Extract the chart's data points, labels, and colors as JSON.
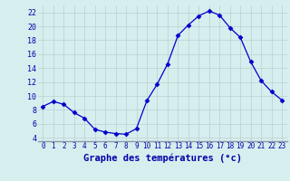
{
  "hours": [
    0,
    1,
    2,
    3,
    4,
    5,
    6,
    7,
    8,
    9,
    10,
    11,
    12,
    13,
    14,
    15,
    16,
    17,
    18,
    19,
    20,
    21,
    22,
    23
  ],
  "temps": [
    8.5,
    9.2,
    8.8,
    7.6,
    6.8,
    5.2,
    4.8,
    4.6,
    4.5,
    5.3,
    9.3,
    11.7,
    14.6,
    18.7,
    20.2,
    21.5,
    22.2,
    21.6,
    19.8,
    18.4,
    14.9,
    12.2,
    10.6,
    9.4
  ],
  "line_color": "#0000cc",
  "marker": "D",
  "marker_size": 2.5,
  "bg_color": "#d6eeee",
  "grid_color": "#b8d0d0",
  "xlabel": "Graphe des températures (°c)",
  "xlabel_color": "#0000aa",
  "xlabel_fontsize": 7.5,
  "tick_color": "#0000aa",
  "tick_fontsize": 5.5,
  "ytick_fontsize": 6.0,
  "ylim": [
    3.5,
    23.0
  ],
  "yticks": [
    4,
    6,
    8,
    10,
    12,
    14,
    16,
    18,
    20,
    22
  ],
  "xlim": [
    -0.5,
    23.5
  ],
  "xticks": [
    0,
    1,
    2,
    3,
    4,
    5,
    6,
    7,
    8,
    9,
    10,
    11,
    12,
    13,
    14,
    15,
    16,
    17,
    18,
    19,
    20,
    21,
    22,
    23
  ]
}
